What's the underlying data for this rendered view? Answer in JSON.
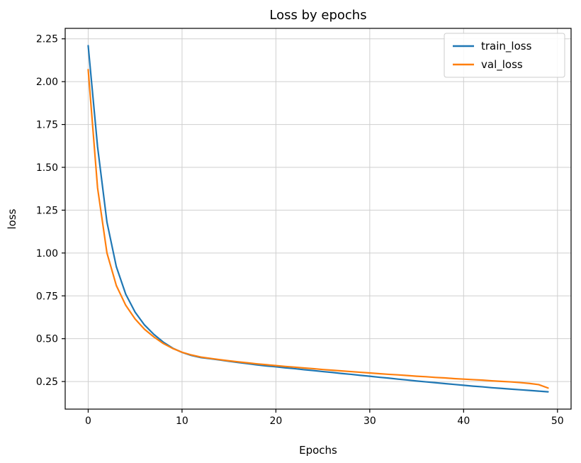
{
  "figure": {
    "background": "#ffffff",
    "frame_color": "#000000",
    "grid_color": "#cfcfcf"
  },
  "chart_data": {
    "type": "line",
    "title": "Loss by epochs",
    "xlabel": "Epochs",
    "ylabel": "loss",
    "grid": true,
    "legend_position": "upper right",
    "xlim": [
      -2.45,
      51.45
    ],
    "ylim": [
      0.089,
      2.311
    ],
    "xticks": [
      0,
      10,
      20,
      30,
      40,
      50
    ],
    "yticks": [
      0.25,
      0.5,
      0.75,
      1.0,
      1.25,
      1.5,
      1.75,
      2.0,
      2.25
    ],
    "x": [
      0,
      1,
      2,
      3,
      4,
      5,
      6,
      7,
      8,
      9,
      10,
      11,
      12,
      13,
      14,
      15,
      16,
      17,
      18,
      19,
      20,
      21,
      22,
      23,
      24,
      25,
      26,
      27,
      28,
      29,
      30,
      31,
      32,
      33,
      34,
      35,
      36,
      37,
      38,
      39,
      40,
      41,
      42,
      43,
      44,
      45,
      46,
      47,
      48,
      49
    ],
    "series": [
      {
        "name": "train_loss",
        "color": "#1f77b4",
        "values": [
          2.21,
          1.62,
          1.18,
          0.92,
          0.76,
          0.655,
          0.58,
          0.525,
          0.48,
          0.445,
          0.42,
          0.402,
          0.39,
          0.383,
          0.376,
          0.368,
          0.361,
          0.354,
          0.347,
          0.341,
          0.336,
          0.33,
          0.325,
          0.319,
          0.314,
          0.308,
          0.303,
          0.297,
          0.292,
          0.286,
          0.281,
          0.275,
          0.27,
          0.264,
          0.259,
          0.253,
          0.248,
          0.243,
          0.238,
          0.233,
          0.228,
          0.223,
          0.219,
          0.214,
          0.21,
          0.206,
          0.202,
          0.198,
          0.194,
          0.19
        ],
        "legend_label": "train_loss"
      },
      {
        "name": "val_loss",
        "color": "#ff7f0e",
        "values": [
          2.07,
          1.38,
          1.0,
          0.81,
          0.695,
          0.615,
          0.555,
          0.51,
          0.472,
          0.443,
          0.421,
          0.405,
          0.393,
          0.385,
          0.378,
          0.371,
          0.365,
          0.359,
          0.353,
          0.348,
          0.343,
          0.338,
          0.334,
          0.329,
          0.325,
          0.32,
          0.316,
          0.312,
          0.308,
          0.304,
          0.3,
          0.296,
          0.292,
          0.289,
          0.285,
          0.281,
          0.278,
          0.274,
          0.271,
          0.267,
          0.264,
          0.261,
          0.258,
          0.254,
          0.251,
          0.248,
          0.244,
          0.239,
          0.232,
          0.212
        ],
        "legend_label": "val_loss"
      }
    ]
  }
}
